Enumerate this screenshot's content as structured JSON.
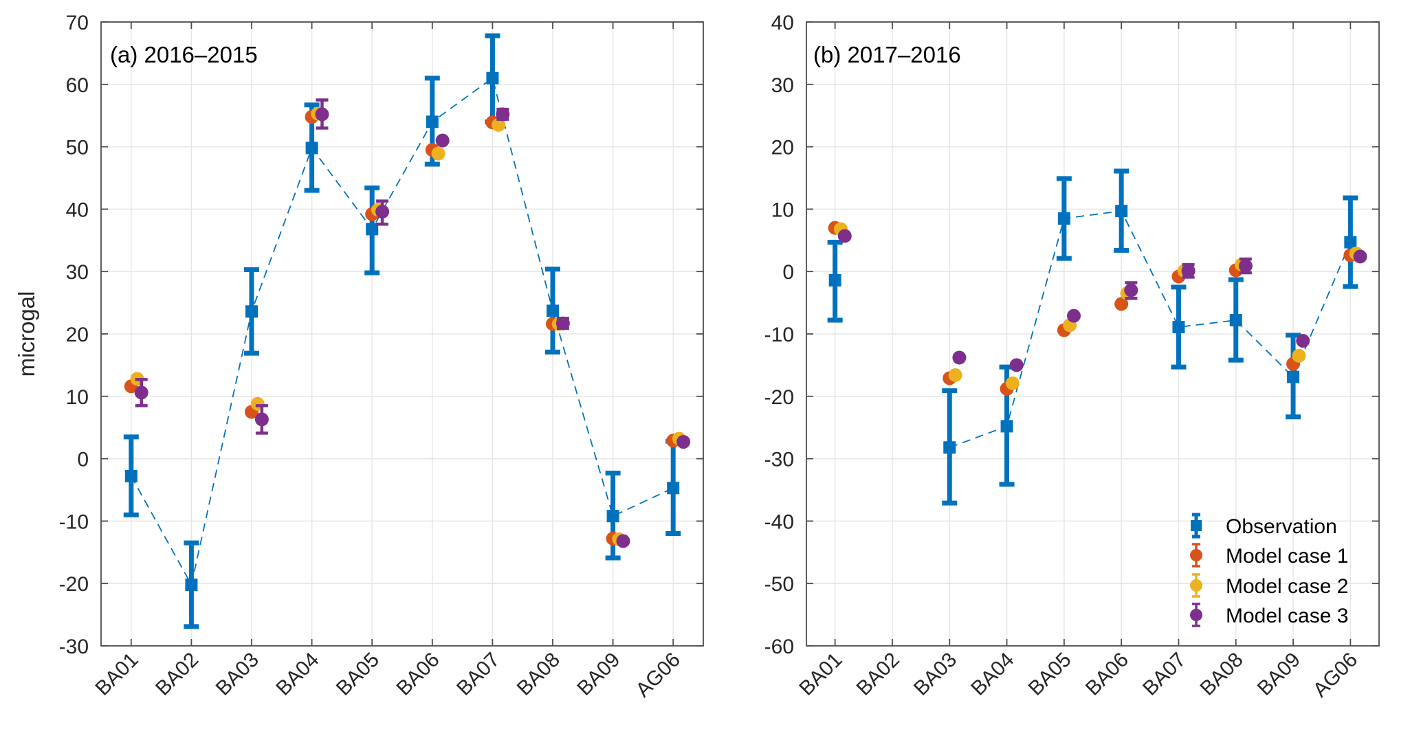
{
  "colors": {
    "observation": "#0072BD",
    "model_case_1": "#D95319",
    "model_case_2": "#EDB120",
    "model_case_3": "#7E2F8E",
    "grid": "#e6e6e6",
    "axis": "#4d4d4d"
  },
  "figure": {
    "ylabel": "microgal"
  },
  "chart_data": [
    {
      "type": "scatter",
      "title": "(a) 2016–2015",
      "xlabel": "",
      "ylabel": "microgal",
      "categories": [
        "BA01",
        "BA02",
        "BA03",
        "BA04",
        "BA05",
        "BA06",
        "BA07",
        "BA08",
        "BA09",
        "AG06"
      ],
      "ylim": [
        -30,
        70
      ],
      "yticks": [
        -30,
        -20,
        -10,
        0,
        10,
        20,
        30,
        40,
        50,
        60,
        70
      ],
      "grid": true,
      "legend": null,
      "series": [
        {
          "name": "Observation",
          "marker": "square",
          "line": "dashed",
          "values": [
            -2.8,
            -20.2,
            23.6,
            49.8,
            36.8,
            54.0,
            61.0,
            23.7,
            -9.2,
            -4.7
          ],
          "err_low": [
            -9.0,
            -26.9,
            16.9,
            43.0,
            29.8,
            47.2,
            54.0,
            17.1,
            -15.9,
            -12.0
          ],
          "err_high": [
            3.5,
            -13.5,
            30.3,
            56.7,
            43.4,
            61.0,
            67.8,
            30.4,
            -2.3,
            2.8
          ]
        },
        {
          "name": "Model case 1",
          "marker": "circle",
          "values": [
            11.6,
            null,
            7.5,
            54.8,
            39.2,
            49.5,
            53.9,
            21.6,
            -12.8,
            2.9
          ],
          "err_low": [
            11.6,
            null,
            7.5,
            54.8,
            39.2,
            49.5,
            53.9,
            21.6,
            -12.8,
            2.9
          ],
          "err_high": [
            11.6,
            null,
            7.5,
            54.8,
            39.2,
            49.5,
            53.9,
            21.6,
            -12.8,
            2.9
          ]
        },
        {
          "name": "Model case 2",
          "marker": "circle",
          "values": [
            12.8,
            null,
            8.8,
            55.3,
            39.9,
            48.9,
            53.5,
            21.6,
            -12.9,
            3.2
          ],
          "err_low": [
            12.8,
            null,
            8.8,
            55.3,
            39.9,
            48.9,
            53.5,
            21.6,
            -12.9,
            3.2
          ],
          "err_high": [
            12.8,
            null,
            8.8,
            55.3,
            39.9,
            48.9,
            53.5,
            21.6,
            -12.9,
            3.2
          ]
        },
        {
          "name": "Model case 3",
          "marker": "circle",
          "values": [
            10.6,
            null,
            6.3,
            55.2,
            39.6,
            51.0,
            55.2,
            21.7,
            -13.2,
            2.7
          ],
          "err_low": [
            8.5,
            null,
            4.1,
            53.0,
            37.6,
            51.0,
            54.4,
            20.9,
            -13.2,
            2.7
          ],
          "err_high": [
            12.7,
            null,
            8.5,
            57.5,
            41.3,
            51.0,
            56.0,
            22.5,
            -13.2,
            2.7
          ]
        }
      ]
    },
    {
      "type": "scatter",
      "title": "(b) 2017–2016",
      "xlabel": "",
      "ylabel": "",
      "categories": [
        "BA01",
        "BA02",
        "BA03",
        "BA04",
        "BA05",
        "BA06",
        "BA07",
        "BA08",
        "BA09",
        "AG06"
      ],
      "ylim": [
        -60,
        40
      ],
      "yticks": [
        -60,
        -50,
        -40,
        -30,
        -20,
        -10,
        0,
        10,
        20,
        30,
        40
      ],
      "grid": true,
      "legend": "bottom-right",
      "series": [
        {
          "name": "Observation",
          "marker": "square",
          "line": "dashed",
          "values": [
            -1.4,
            null,
            -28.2,
            -24.8,
            8.5,
            9.7,
            -8.9,
            -7.8,
            -16.9,
            4.7
          ],
          "err_low": [
            -7.8,
            null,
            -37.1,
            -34.1,
            2.1,
            3.4,
            -15.3,
            -14.2,
            -23.3,
            -2.4
          ],
          "err_high": [
            4.7,
            null,
            -19.1,
            -15.3,
            14.9,
            16.1,
            -2.5,
            -1.3,
            -10.2,
            11.8
          ]
        },
        {
          "name": "Model case 1",
          "marker": "circle",
          "values": [
            7.0,
            null,
            -17.1,
            -18.8,
            -9.4,
            -5.2,
            -0.8,
            0.2,
            -14.8,
            2.6
          ],
          "err_low": [
            7.0,
            null,
            -17.1,
            -18.8,
            -9.4,
            -5.2,
            -0.8,
            0.2,
            -14.8,
            2.6
          ],
          "err_high": [
            7.0,
            null,
            -17.1,
            -18.8,
            -9.4,
            -5.2,
            -0.8,
            0.2,
            -14.8,
            2.6
          ]
        },
        {
          "name": "Model case 2",
          "marker": "circle",
          "values": [
            6.8,
            null,
            -16.6,
            -17.9,
            -8.6,
            -3.5,
            0.1,
            1.1,
            -13.5,
            2.9
          ],
          "err_low": [
            6.8,
            null,
            -16.6,
            -17.9,
            -8.6,
            -3.5,
            0.1,
            1.1,
            -13.5,
            2.9
          ],
          "err_high": [
            6.8,
            null,
            -16.6,
            -17.9,
            -8.6,
            -3.5,
            0.1,
            1.1,
            -13.5,
            2.9
          ]
        },
        {
          "name": "Model case 3",
          "marker": "circle",
          "values": [
            5.7,
            null,
            -13.8,
            -15.0,
            -7.1,
            -3.0,
            0.1,
            0.9,
            -11.1,
            2.4
          ],
          "err_low": [
            5.7,
            null,
            -13.8,
            -15.0,
            -7.1,
            -4.3,
            -0.9,
            -0.2,
            -11.1,
            2.4
          ],
          "err_high": [
            5.7,
            null,
            -13.8,
            -15.0,
            -7.1,
            -1.8,
            1.1,
            2.0,
            -11.1,
            2.4
          ]
        }
      ]
    }
  ]
}
